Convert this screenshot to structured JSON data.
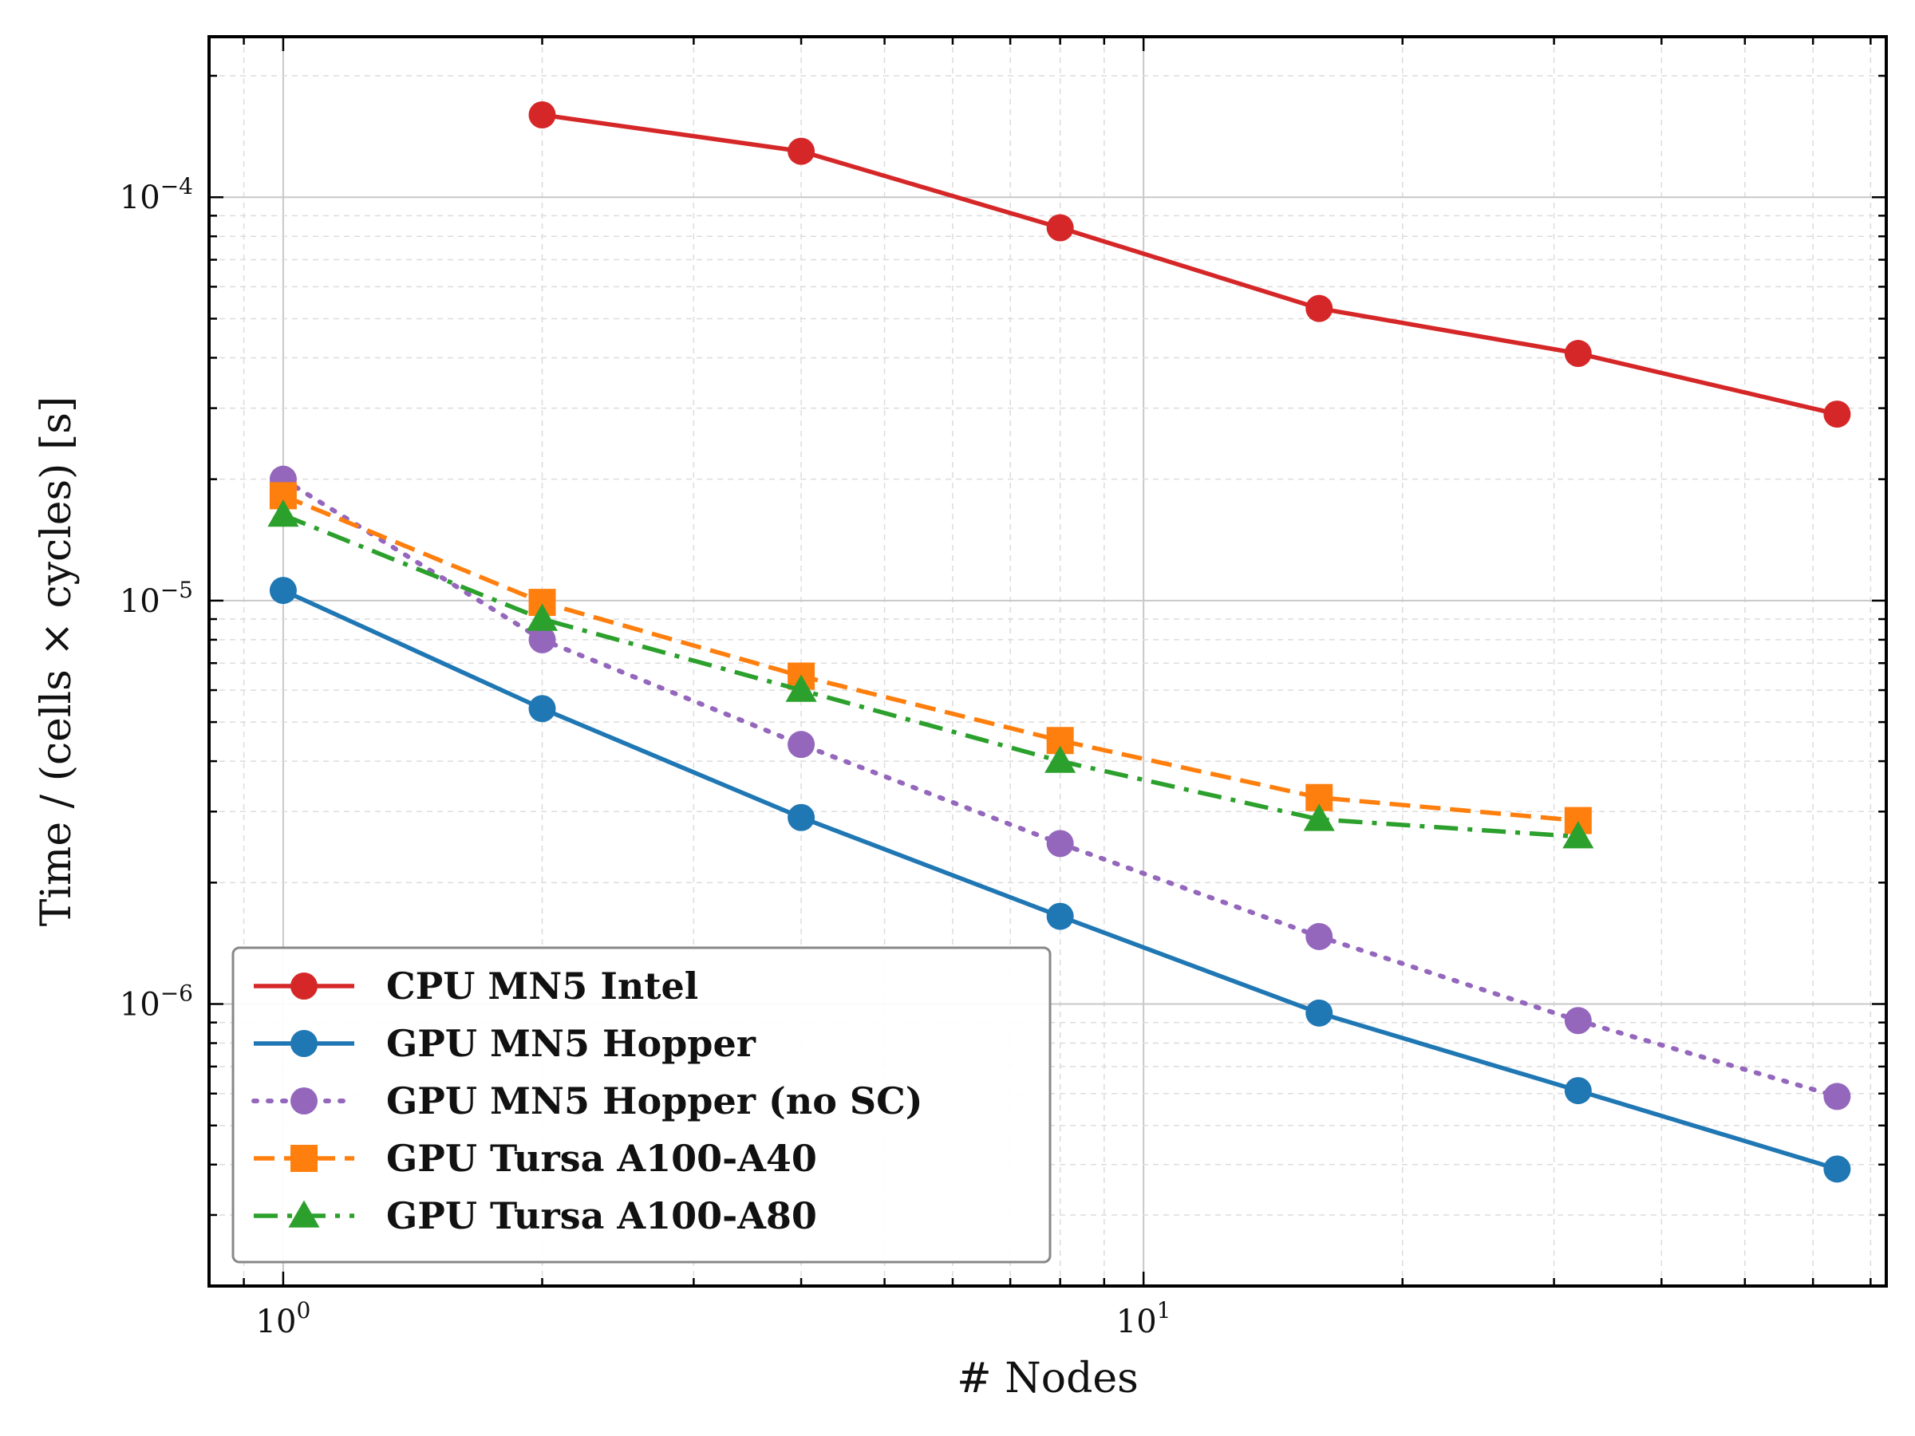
{
  "chart_data": {
    "type": "line",
    "title": "",
    "xlabel": "# Nodes",
    "ylabel": "Time / (cells × cycles) [s]",
    "xscale": "log",
    "yscale": "log",
    "xlim": [
      0.82,
      73
    ],
    "ylim": [
      2e-07,
      0.00025
    ],
    "grid": true,
    "legend_position": "lower-left",
    "x_ticks": [
      {
        "value": 1,
        "base": "10",
        "exp": "0"
      },
      {
        "value": 10,
        "base": "10",
        "exp": "1"
      }
    ],
    "y_ticks": [
      {
        "value": 1e-06,
        "base": "10",
        "exp": "−6"
      },
      {
        "value": 1e-05,
        "base": "10",
        "exp": "−5"
      },
      {
        "value": 0.0001,
        "base": "10",
        "exp": "−4"
      }
    ],
    "series": [
      {
        "name": "CPU MN5 Intel",
        "color": "#d62728",
        "line_style": "solid",
        "marker": "circle",
        "x": [
          2,
          4,
          8,
          16,
          32,
          64
        ],
        "values": [
          0.00016,
          0.00013,
          8.4e-05,
          5.3e-05,
          4.1e-05,
          2.9e-05
        ]
      },
      {
        "name": "GPU MN5 Hopper",
        "color": "#1f77b4",
        "line_style": "solid",
        "marker": "circle",
        "x": [
          1,
          2,
          4,
          8,
          16,
          32,
          64
        ],
        "values": [
          1.06e-05,
          5.4e-06,
          2.9e-06,
          1.65e-06,
          9.5e-07,
          6.1e-07,
          3.9e-07
        ]
      },
      {
        "name": "GPU MN5 Hopper (no SC)",
        "color": "#9467bd",
        "line_style": "dotted",
        "marker": "circle",
        "x": [
          1,
          2,
          4,
          8,
          16,
          32,
          64
        ],
        "values": [
          2e-05,
          8e-06,
          4.4e-06,
          2.5e-06,
          1.47e-06,
          9.1e-07,
          5.9e-07
        ]
      },
      {
        "name": "GPU Tursa A100-A40",
        "color": "#ff7f0e",
        "line_style": "dashed",
        "marker": "square",
        "x": [
          1,
          2,
          4,
          8,
          16,
          32
        ],
        "values": [
          1.82e-05,
          9.9e-06,
          6.5e-06,
          4.5e-06,
          3.25e-06,
          2.85e-06
        ]
      },
      {
        "name": "GPU Tursa A100-A80",
        "color": "#2ca02c",
        "line_style": "dashdot",
        "marker": "triangle",
        "x": [
          1,
          2,
          4,
          8,
          16,
          32
        ],
        "values": [
          1.63e-05,
          9e-06,
          6e-06,
          4e-06,
          2.87e-06,
          2.6e-06
        ]
      }
    ]
  }
}
